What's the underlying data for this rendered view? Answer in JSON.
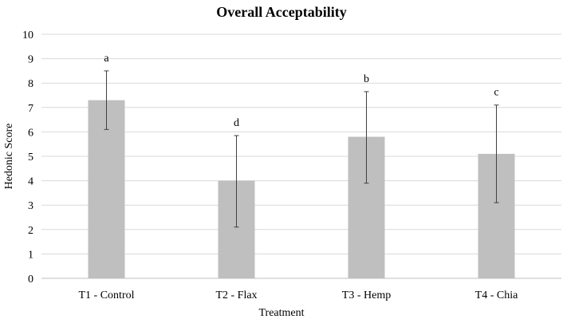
{
  "chart_data": {
    "type": "bar",
    "title": "Overall Acceptability",
    "xlabel": "Treatment",
    "ylabel": "Hedonic Score",
    "ylim": [
      0,
      10
    ],
    "yticks": [
      "0",
      "1",
      "2",
      "3",
      "4",
      "5",
      "6",
      "7",
      "8",
      "9",
      "10"
    ],
    "grid": true,
    "categories": [
      "T1 - Control",
      "T2 - Flax",
      "T3 - Hemp",
      "T4 - Chia"
    ],
    "values": [
      7.3,
      4.0,
      5.8,
      5.1
    ],
    "error_low": [
      6.1,
      2.1,
      3.9,
      3.1
    ],
    "error_high": [
      8.5,
      5.85,
      7.65,
      7.1
    ],
    "annotations": [
      "a",
      "d",
      "b",
      "c"
    ],
    "bar_color": "#bfbfbf",
    "grid_color": "#d9d9d9"
  }
}
